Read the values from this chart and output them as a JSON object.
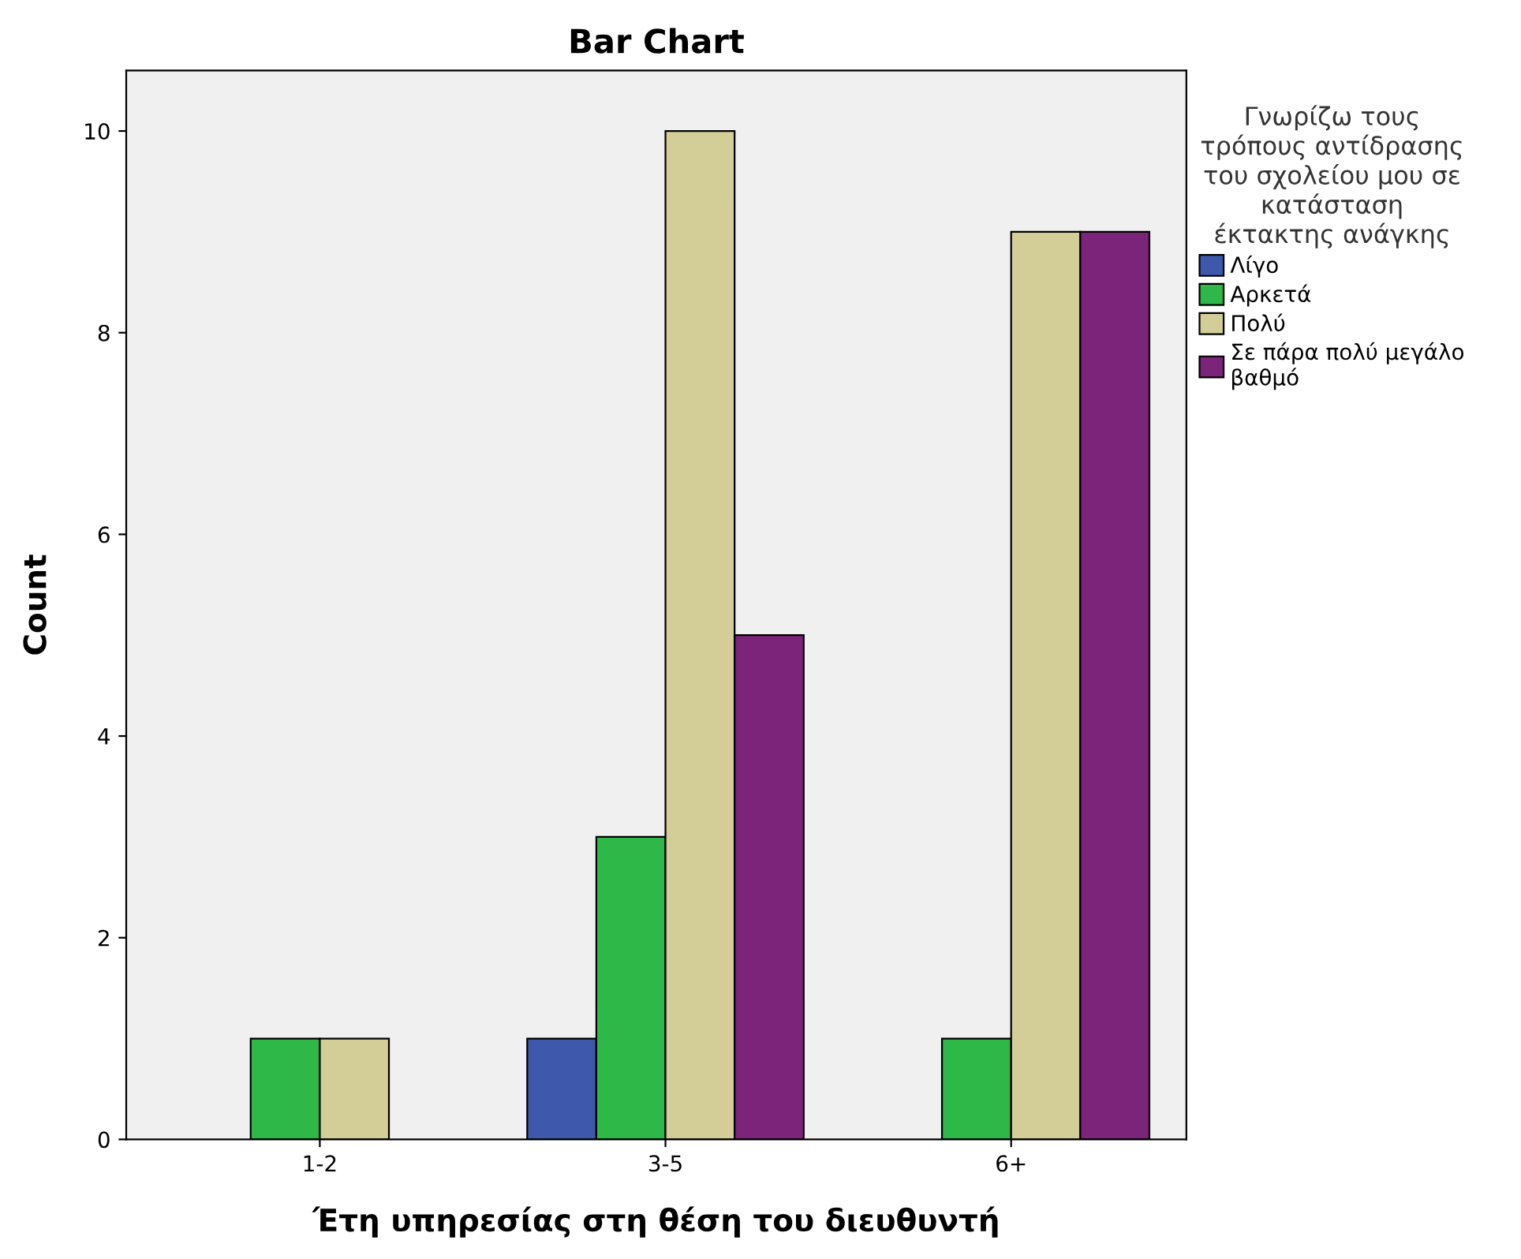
{
  "chart_data": {
    "type": "bar",
    "title": "Bar Chart",
    "xlabel": "Έτη υπηρεσίας στη θέση του διευθυντή",
    "ylabel": "Count",
    "legend_title": "Γνωρίζω τους\nτρόπους αντίδρασης\nτου σχολείου μου σε\nκατάσταση\nέκτακτης ανάγκης",
    "categories": [
      "1-2",
      "3-5",
      "6+"
    ],
    "series": [
      {
        "name": "Λίγο",
        "color": "#3e58ac",
        "values": [
          null,
          1,
          null
        ]
      },
      {
        "name": "Αρκετά",
        "color": "#2eb848",
        "values": [
          1,
          3,
          1
        ]
      },
      {
        "name": "Πολύ",
        "color": "#d3ce97",
        "values": [
          1,
          10,
          9
        ]
      },
      {
        "name": "Σε πάρα πολύ μεγάλο\nβαθμό",
        "color": "#7b2479",
        "values": [
          null,
          5,
          9
        ]
      }
    ],
    "ylim": [
      0,
      10.6
    ],
    "yticks": [
      0,
      2,
      4,
      6,
      8,
      10
    ],
    "grid": false,
    "legend": "right"
  }
}
